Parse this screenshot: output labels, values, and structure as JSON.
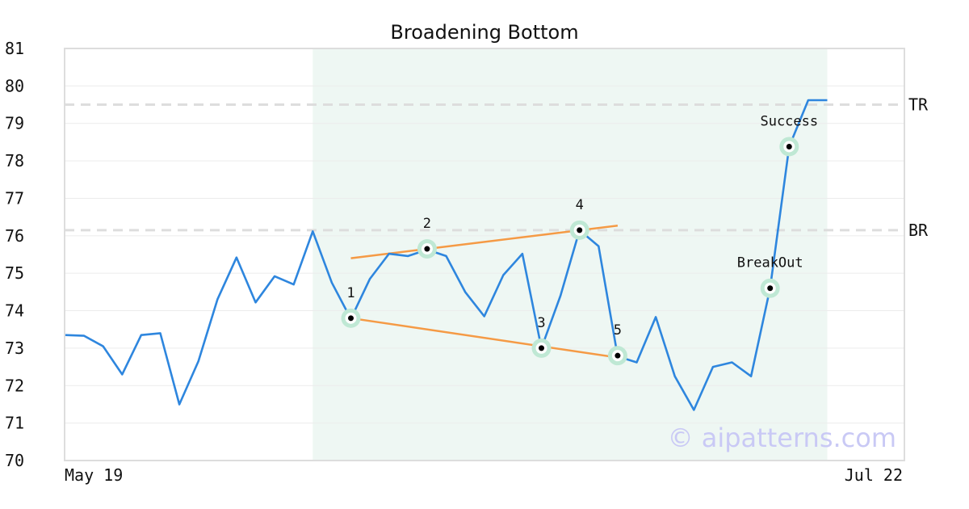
{
  "chart_data": {
    "type": "line",
    "title": "Broadening Bottom",
    "watermark": "© aipatterns.com",
    "x_tick_labels": [
      "May 19",
      "Jul 22"
    ],
    "ylim": [
      70,
      81
    ],
    "y_ticks": [
      70,
      71,
      72,
      73,
      74,
      75,
      76,
      77,
      78,
      79,
      80,
      81
    ],
    "grid": true,
    "colors": {
      "price": "#2e86de",
      "trendline": "#f59a45",
      "highlight": "#eef7f3",
      "marker_ring": "#bfe8d4",
      "reference": "#dddddd"
    },
    "series": [
      {
        "values": [
          73.35,
          73.33,
          73.05,
          72.3,
          73.35,
          73.4,
          71.5,
          72.65,
          74.3,
          75.42,
          74.22,
          74.92,
          74.7,
          76.12,
          74.75,
          73.78,
          74.85,
          75.52,
          75.46,
          75.63,
          75.46,
          74.5,
          73.85,
          74.95,
          75.52,
          73.0,
          74.4,
          76.15,
          75.72,
          72.78,
          72.62,
          73.83,
          72.25,
          71.35,
          72.5,
          72.62,
          72.25,
          74.6,
          78.38,
          79.62,
          79.62
        ]
      }
    ],
    "pattern_region": {
      "start_index": 13,
      "end_index": 40
    },
    "reference_lines": [
      {
        "label": "TR",
        "value": 79.5
      },
      {
        "label": "BR",
        "value": 76.15
      }
    ],
    "trendlines": [
      {
        "from": [
          15,
          75.4
        ],
        "to": [
          29,
          76.27
        ]
      },
      {
        "from": [
          15,
          73.8
        ],
        "to": [
          29,
          72.75
        ]
      }
    ],
    "points": [
      {
        "label": "1",
        "index": 15,
        "value": 73.8,
        "label_pos": "above"
      },
      {
        "label": "2",
        "index": 19,
        "value": 75.65,
        "label_pos": "above"
      },
      {
        "label": "3",
        "index": 25,
        "value": 73.0,
        "label_pos": "above"
      },
      {
        "label": "4",
        "index": 27,
        "value": 76.15,
        "label_pos": "above"
      },
      {
        "label": "5",
        "index": 29,
        "value": 72.8,
        "label_pos": "above"
      },
      {
        "label": "BreakOut",
        "index": 37,
        "value": 74.6,
        "label_pos": "above"
      },
      {
        "label": "Success",
        "index": 38,
        "value": 78.38,
        "label_pos": "above"
      }
    ]
  }
}
